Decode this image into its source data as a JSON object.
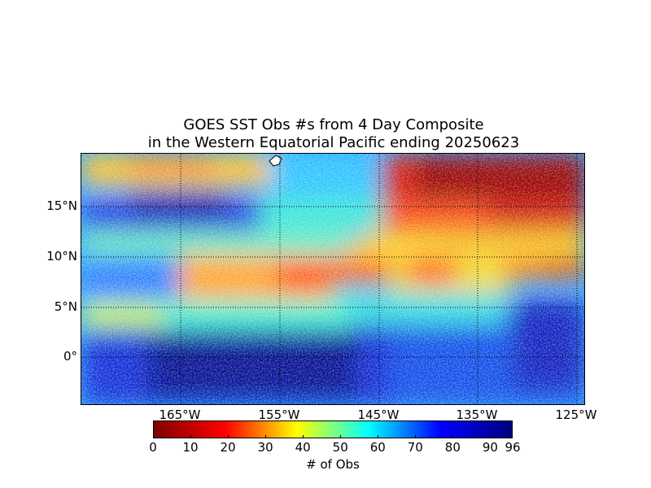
{
  "title_line1": "GOES SST Obs #s from 4 Day Composite",
  "title_line2": "in the Western Equatorial Pacific ending 20250623",
  "lat_labels": [
    "15°N",
    "10°N",
    "5°N",
    "0°"
  ],
  "lon_labels": [
    "165°W",
    "155°W",
    "145°W",
    "135°W",
    "125°W"
  ],
  "colorbar": {
    "label": "# of Obs",
    "ticks": [
      "0",
      "10",
      "20",
      "30",
      "40",
      "50",
      "60",
      "70",
      "80",
      "90",
      "96"
    ],
    "range": [
      0,
      96
    ]
  },
  "colormap": [
    "#00007f",
    "#0000ff",
    "#00ffff",
    "#ffff00",
    "#ff0000",
    "#7f0000"
  ]
}
